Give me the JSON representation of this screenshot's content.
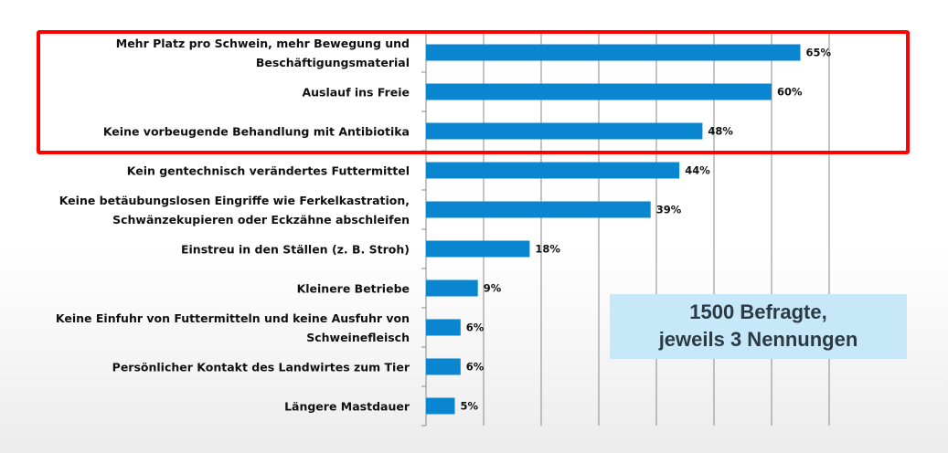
{
  "chart_data": {
    "type": "bar",
    "orientation": "horizontal",
    "categories": [
      "Mehr Platz pro Schwein, mehr Bewegung und Beschäftigungsmaterial",
      "Auslauf ins Freie",
      "Keine vorbeugende Behandlung mit Antibiotika",
      "Kein gentechnisch verändertes Futtermittel",
      "Keine betäubungslosen Eingriffe wie Ferkelkastration, Schwänzekupieren oder Eckzähne abschleifen",
      "Einstreu in den Ställen (z. B. Stroh)",
      "Kleinere Betriebe",
      "Keine Einfuhr von Futtermitteln und keine Ausfuhr von Schweinefleisch",
      "Persönlicher Kontakt des Landwirtes zum Tier",
      "Längere Mastdauer"
    ],
    "category_lines": [
      [
        "Mehr Platz pro Schwein, mehr Bewegung und",
        "Beschäftigungsmaterial"
      ],
      [
        "Auslauf ins Freie"
      ],
      [
        "Keine vorbeugende Behandlung mit Antibiotika"
      ],
      [
        "Kein gentechnisch verändertes Futtermittel"
      ],
      [
        "Keine betäubungslosen Eingriffe wie Ferkelkastration,",
        "Schwänzekupieren oder Eckzähne abschleifen"
      ],
      [
        "Einstreu in den Ställen (z. B. Stroh)"
      ],
      [
        "Kleinere Betriebe"
      ],
      [
        "Keine Einfuhr von Futtermitteln und keine Ausfuhr von",
        "Schweinefleisch"
      ],
      [
        "Persönlicher Kontakt des Landwirtes zum Tier"
      ],
      [
        "Längere Mastdauer"
      ]
    ],
    "values": [
      65,
      60,
      48,
      44,
      39,
      18,
      9,
      6,
      6,
      5
    ],
    "labels": [
      "65%",
      "60%",
      "48%",
      "44%",
      "39%",
      "18%",
      "9%",
      "6%",
      "6%",
      "5%"
    ],
    "xlim": [
      0,
      70
    ],
    "grid_step": 10,
    "grid": true,
    "tick_labels_shown": false,
    "bar_color": "#0a86d0",
    "highlight": {
      "categories": [
        0,
        1,
        2
      ],
      "color": "#ff0000"
    },
    "annotation": [
      "1500 Befragte,",
      "jeweils 3 Nennungen"
    ],
    "annotation_bg": "#c6e8f8"
  }
}
